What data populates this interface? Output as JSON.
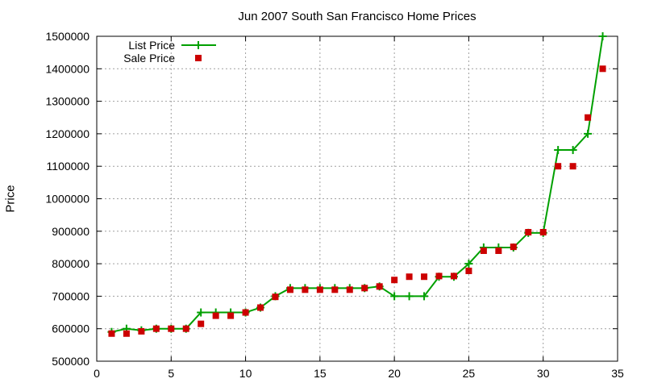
{
  "chart_data": {
    "type": "line",
    "title": "Jun 2007 South San Francisco Home Prices",
    "xlabel": "",
    "ylabel": "Price",
    "xlim": [
      0,
      35
    ],
    "ylim": [
      500000,
      1500000
    ],
    "xticks": [
      0,
      5,
      10,
      15,
      20,
      25,
      30,
      35
    ],
    "yticks": [
      500000,
      600000,
      700000,
      800000,
      900000,
      1000000,
      1100000,
      1200000,
      1300000,
      1400000,
      1500000
    ],
    "grid": true,
    "legend_position": "top-left",
    "series": [
      {
        "name": "List Price",
        "style": "line-with-plus-markers",
        "color": "#00a000",
        "x": [
          1,
          2,
          3,
          4,
          5,
          6,
          7,
          8,
          9,
          10,
          11,
          12,
          13,
          14,
          15,
          16,
          17,
          18,
          19,
          20,
          21,
          22,
          23,
          24,
          25,
          26,
          27,
          28,
          29,
          30,
          31,
          32,
          33,
          34
        ],
        "values": [
          590000,
          600000,
          595000,
          600000,
          600000,
          600000,
          650000,
          650000,
          650000,
          650000,
          665000,
          700000,
          725000,
          725000,
          725000,
          725000,
          725000,
          725000,
          730000,
          700000,
          700000,
          700000,
          760000,
          760000,
          800000,
          850000,
          850000,
          850000,
          895000,
          895000,
          1150000,
          1150000,
          1200000,
          1500000
        ]
      },
      {
        "name": "Sale Price",
        "style": "square-markers",
        "color": "#cc0000",
        "x": [
          1,
          2,
          3,
          4,
          5,
          6,
          7,
          8,
          9,
          10,
          11,
          12,
          13,
          14,
          15,
          16,
          17,
          18,
          19,
          20,
          21,
          22,
          23,
          24,
          25,
          26,
          27,
          28,
          29,
          30,
          31,
          32,
          33,
          34
        ],
        "values": [
          585000,
          585000,
          592000,
          600000,
          600000,
          600000,
          615000,
          640000,
          640000,
          650000,
          665000,
          698000,
          720000,
          720000,
          720000,
          720000,
          720000,
          725000,
          730000,
          750000,
          760000,
          760000,
          762000,
          762000,
          778000,
          840000,
          840000,
          852000,
          897000,
          897000,
          1100000,
          1100000,
          1250000,
          1400000
        ]
      }
    ]
  }
}
